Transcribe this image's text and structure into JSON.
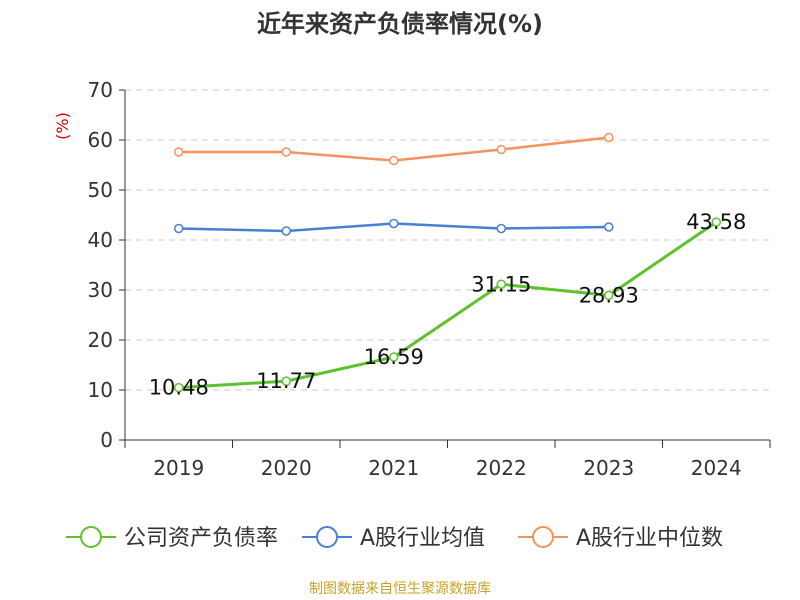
{
  "chart_data": {
    "type": "line",
    "title": "近年来资产负债率情况(%)",
    "ylabel": "(%)",
    "categories": [
      "2019",
      "2020",
      "2021",
      "2022",
      "2023",
      "2024"
    ],
    "ylim": [
      0,
      70
    ],
    "yticks": [
      0,
      10,
      20,
      30,
      40,
      50,
      60,
      70
    ],
    "grid": true,
    "legend_position": "bottom",
    "series": [
      {
        "name": "公司资产负债率",
        "color": "#5ec12f",
        "values": [
          10.48,
          11.77,
          16.59,
          31.15,
          28.93,
          43.58
        ],
        "labels": [
          "10.48",
          "11.77",
          "16.59",
          "31.15",
          "28.93",
          "43.58"
        ]
      },
      {
        "name": "A股行业均值",
        "color": "#4a7fd6",
        "values": [
          42.3,
          41.8,
          43.3,
          42.3,
          42.6,
          null
        ]
      },
      {
        "name": "A股行业中位数",
        "color": "#f5935f",
        "values": [
          57.6,
          57.6,
          55.9,
          58.1,
          60.5,
          null
        ]
      }
    ]
  },
  "colors": {
    "axis": "#333333",
    "grid": "#cccccc",
    "ylabel": "#cc0000",
    "source": "#c9a227"
  },
  "footer": {
    "source": "制图数据来自恒生聚源数据库"
  }
}
